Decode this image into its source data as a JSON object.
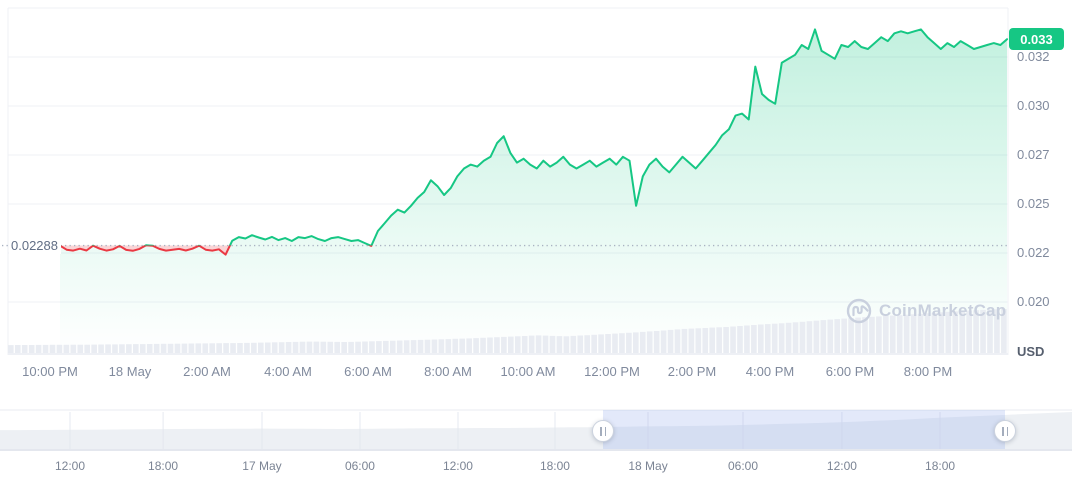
{
  "watermark": {
    "text": "CoinMarketCap"
  },
  "chart_data": {
    "type": "area",
    "unit": "USD",
    "current_price_label": "0.033",
    "current_price_value": 0.03341,
    "previous_close": {
      "label": "0.02288",
      "value": 0.02288
    },
    "ylim": [
      0.02,
      0.035
    ],
    "grid": true,
    "legend_position": "none",
    "colors": {
      "up": "#16c784",
      "down": "#ea3943",
      "badge_bg": "#16c784",
      "area_top": "rgba(22,199,132,0.26)",
      "area_bottom": "rgba(22,199,132,0)",
      "down_fill": "rgba(234,57,67,0.22)",
      "grid_line": "#eff1f6",
      "ref_dots": "#a9b2c1",
      "volume_bar": "#e9ecf2",
      "nav_area": "#edf0f4",
      "nav_grid": "#e2e6ee",
      "nav_selection": "rgba(143,168,235,0.25)",
      "axis_text": "#808a9d"
    },
    "y_axis": {
      "ticks": [
        {
          "label": "0.032",
          "value": 0.0325
        },
        {
          "label": "0.030",
          "value": 0.03
        },
        {
          "label": "0.027",
          "value": 0.0275
        },
        {
          "label": "0.025",
          "value": 0.025
        },
        {
          "label": "0.022",
          "value": 0.0225
        },
        {
          "label": "0.020",
          "value": 0.02
        }
      ],
      "extra_gridline_values": [
        0.035
      ]
    },
    "x_axis": {
      "ticks": [
        {
          "label": "10:00 PM",
          "pos": 0.042
        },
        {
          "label": "18 May",
          "pos": 0.122
        },
        {
          "label": "2:00 AM",
          "pos": 0.199
        },
        {
          "label": "4:00 AM",
          "pos": 0.28
        },
        {
          "label": "6:00 AM",
          "pos": 0.36
        },
        {
          "label": "8:00 AM",
          "pos": 0.44
        },
        {
          "label": "10:00 AM",
          "pos": 0.52
        },
        {
          "label": "12:00 PM",
          "pos": 0.604
        },
        {
          "label": "2:00 PM",
          "pos": 0.684
        },
        {
          "label": "4:00 PM",
          "pos": 0.762
        },
        {
          "label": "6:00 PM",
          "pos": 0.842
        },
        {
          "label": "8:00 PM",
          "pos": 0.92
        }
      ]
    },
    "price_series": {
      "name": "Price (USD)",
      "values": [
        0.02288,
        0.02267,
        0.02262,
        0.02272,
        0.02263,
        0.02287,
        0.02272,
        0.02262,
        0.02269,
        0.02286,
        0.02266,
        0.02261,
        0.02271,
        0.0229,
        0.02287,
        0.02271,
        0.02262,
        0.02267,
        0.02271,
        0.02263,
        0.02272,
        0.02287,
        0.02267,
        0.02262,
        0.02269,
        0.02242,
        0.02312,
        0.02331,
        0.02324,
        0.02341,
        0.02329,
        0.02319,
        0.02332,
        0.02316,
        0.02326,
        0.02311,
        0.02331,
        0.02326,
        0.02336,
        0.02321,
        0.02311,
        0.02326,
        0.02331,
        0.02321,
        0.02311,
        0.02316,
        0.02301,
        0.02286,
        0.02362,
        0.02401,
        0.02441,
        0.02471,
        0.02456,
        0.02491,
        0.02531,
        0.02561,
        0.02621,
        0.02591,
        0.02546,
        0.02581,
        0.02641,
        0.02681,
        0.02701,
        0.02691,
        0.02721,
        0.02741,
        0.02811,
        0.02846,
        0.02761,
        0.02711,
        0.02731,
        0.02701,
        0.02681,
        0.02721,
        0.02691,
        0.02711,
        0.02741,
        0.02701,
        0.02681,
        0.02701,
        0.02721,
        0.02691,
        0.02711,
        0.02731,
        0.02701,
        0.02741,
        0.02721,
        0.02491,
        0.02641,
        0.02701,
        0.02731,
        0.02691,
        0.02661,
        0.02701,
        0.02741,
        0.02711,
        0.02681,
        0.02721,
        0.02761,
        0.02801,
        0.02851,
        0.02881,
        0.02951,
        0.02961,
        0.02931,
        0.03201,
        0.03061,
        0.03031,
        0.03011,
        0.03221,
        0.03241,
        0.03261,
        0.03311,
        0.03291,
        0.03391,
        0.03281,
        0.03261,
        0.03241,
        0.03311,
        0.03301,
        0.03331,
        0.03301,
        0.03291,
        0.03321,
        0.03351,
        0.03331,
        0.03371,
        0.03381,
        0.03371,
        0.03381,
        0.03391,
        0.03351,
        0.03321,
        0.03291,
        0.03321,
        0.03301,
        0.03331,
        0.03311,
        0.03291,
        0.03301,
        0.03311,
        0.03321,
        0.03311,
        0.03341
      ]
    },
    "volume_profile": [
      [
        0,
        0.18
      ],
      [
        0.08,
        0.19
      ],
      [
        0.16,
        0.21
      ],
      [
        0.24,
        0.23
      ],
      [
        0.3,
        0.26
      ],
      [
        0.34,
        0.25
      ],
      [
        0.4,
        0.29
      ],
      [
        0.46,
        0.33
      ],
      [
        0.5,
        0.37
      ],
      [
        0.53,
        0.4
      ],
      [
        0.56,
        0.38
      ],
      [
        0.6,
        0.43
      ],
      [
        0.63,
        0.47
      ],
      [
        0.65,
        0.5
      ],
      [
        0.68,
        0.55
      ],
      [
        0.72,
        0.59
      ],
      [
        0.75,
        0.64
      ],
      [
        0.78,
        0.68
      ],
      [
        0.82,
        0.75
      ],
      [
        0.85,
        0.8
      ],
      [
        0.88,
        0.84
      ],
      [
        0.91,
        0.88
      ],
      [
        0.94,
        0.93
      ],
      [
        0.97,
        0.97
      ],
      [
        1,
        1.0
      ]
    ],
    "navigator": {
      "selection": {
        "start": 0.5625,
        "end": 0.9375
      },
      "x_ticks": [
        {
          "label": "12:00",
          "pos": 0.0653
        },
        {
          "label": "18:00",
          "pos": 0.1521
        },
        {
          "label": "17 May",
          "pos": 0.2444
        },
        {
          "label": "06:00",
          "pos": 0.3358
        },
        {
          "label": "12:00",
          "pos": 0.4272
        },
        {
          "label": "18:00",
          "pos": 0.5177
        },
        {
          "label": "18 May",
          "pos": 0.6045
        },
        {
          "label": "06:00",
          "pos": 0.6931
        },
        {
          "label": "12:00",
          "pos": 0.7854
        },
        {
          "label": "18:00",
          "pos": 0.8769
        }
      ],
      "area_profile": [
        [
          0,
          0.51
        ],
        [
          0.08,
          0.52
        ],
        [
          0.16,
          0.54
        ],
        [
          0.25,
          0.55
        ],
        [
          0.32,
          0.54
        ],
        [
          0.4,
          0.56
        ],
        [
          0.48,
          0.57
        ],
        [
          0.55,
          0.59
        ],
        [
          0.6,
          0.61
        ],
        [
          0.64,
          0.62
        ],
        [
          0.68,
          0.64
        ],
        [
          0.72,
          0.67
        ],
        [
          0.76,
          0.7
        ],
        [
          0.8,
          0.74
        ],
        [
          0.84,
          0.79
        ],
        [
          0.88,
          0.85
        ],
        [
          0.92,
          0.9
        ],
        [
          0.96,
          0.95
        ],
        [
          1,
          1.0
        ]
      ]
    }
  }
}
